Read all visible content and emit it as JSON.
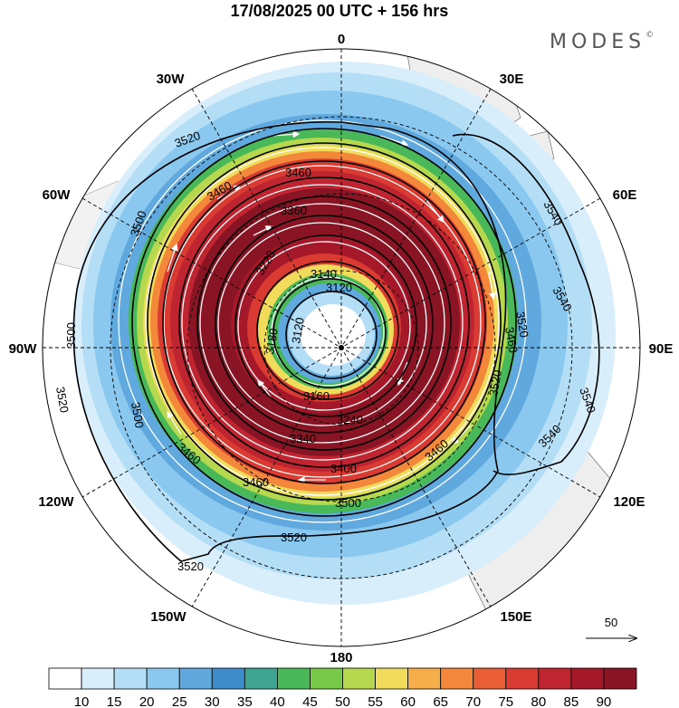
{
  "title": "17/08/2025  00 UTC  + 156 hrs",
  "brand": "MODES",
  "brand_mark": "©",
  "longitude_labels": {
    "lon_0": "0",
    "lon_30e": "30E",
    "lon_60e": "60E",
    "lon_90e": "90E",
    "lon_120e": "120E",
    "lon_150e": "150E",
    "lon_180": "180",
    "lon_150w": "150W",
    "lon_120w": "120W",
    "lon_90w": "90W",
    "lon_60w": "60W",
    "lon_30w": "30W"
  },
  "contour_labels": [
    "3520",
    "3460",
    "3460",
    "3360",
    "3540",
    "3500",
    "3220",
    "3140",
    "3500",
    "3520",
    "3120",
    "3180",
    "3120",
    "3540",
    "3520",
    "3460",
    "3500",
    "3520",
    "3160",
    "3240",
    "3340",
    "3400",
    "3460",
    "3500",
    "3520",
    "3520",
    "3540",
    "3460",
    "3460",
    "3540"
  ],
  "vector_reference": "50",
  "colorbar": {
    "colors": [
      "#ffffff",
      "#d8eefb",
      "#b4def6",
      "#8ac8ef",
      "#5fa9de",
      "#3e8cc9",
      "#3fa492",
      "#48b858",
      "#78c84a",
      "#b5d84e",
      "#f0dc5a",
      "#f6ae4b",
      "#f3873a",
      "#ea5e35",
      "#d93a32",
      "#bf2530",
      "#a4182a",
      "#891424"
    ],
    "labels": [
      "10",
      "15",
      "20",
      "25",
      "30",
      "35",
      "40",
      "45",
      "50",
      "55",
      "60",
      "65",
      "70",
      "75",
      "80",
      "85",
      "90"
    ]
  },
  "chart_data": {
    "type": "heatmap",
    "title": "17/08/2025  00 UTC  + 156 hrs",
    "projection": "south polar stereographic",
    "field": "wind speed (shaded) with wind vectors and height contours",
    "shading_levels": [
      10,
      15,
      20,
      25,
      30,
      35,
      40,
      45,
      50,
      55,
      60,
      65,
      70,
      75,
      80,
      85,
      90
    ],
    "contour_levels": [
      3120,
      3140,
      3160,
      3180,
      3220,
      3240,
      3340,
      3360,
      3400,
      3460,
      3500,
      3520,
      3540
    ],
    "vector_reference_speed": 50
  }
}
